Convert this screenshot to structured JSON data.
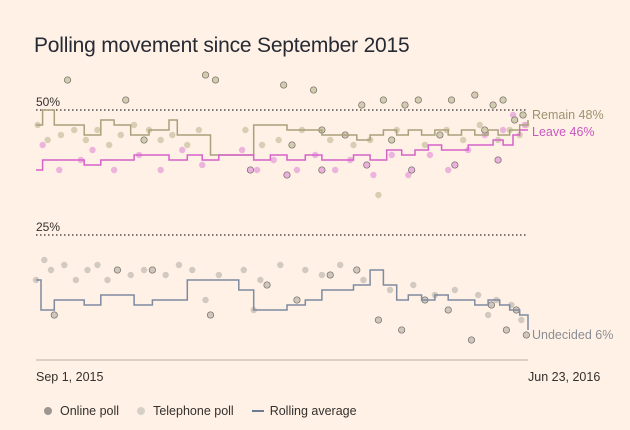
{
  "chart_data": {
    "type": "scatter",
    "title": "Polling movement since September 2015",
    "xlabel": "",
    "ylabel": "",
    "x_range": [
      "2015-09-01",
      "2016-06-23"
    ],
    "x_tick_labels": [
      "Sep 1, 2015",
      "Jun 23, 2016"
    ],
    "ylim": [
      0,
      60
    ],
    "reference_lines": [
      {
        "value": 50,
        "label": "50%"
      },
      {
        "value": 25,
        "label": "25%"
      }
    ],
    "grid": false,
    "legend_position": "bottom",
    "legend": [
      {
        "label": "Online poll",
        "marker": "dot",
        "color": "#9b9690"
      },
      {
        "label": "Telephone poll",
        "marker": "dot",
        "color": "#d7d0c8"
      },
      {
        "label": "Rolling average",
        "marker": "line",
        "color": "#6b7b91"
      }
    ],
    "colors": {
      "remain": "#aaa17c",
      "remain_label": "#9b9470",
      "leave": "#d662c9",
      "leave_label": "#c857bf",
      "undecided": "#7e8ba0",
      "undecided_label": "#8a8e95",
      "poll_remain": "#cdc6a6",
      "poll_leave": "#e7a4da",
      "poll_undecided": "#c7bfb6",
      "poll_online_outline": "#6e6a66"
    },
    "series": [
      {
        "name": "Remain",
        "end_label": "Remain 48%",
        "rolling_average": [
          [
            "2015-09-01",
            47
          ],
          [
            "2015-09-05",
            50
          ],
          [
            "2015-09-12",
            47
          ],
          [
            "2015-09-20",
            47
          ],
          [
            "2015-09-30",
            45
          ],
          [
            "2015-10-10",
            48
          ],
          [
            "2015-10-18",
            47
          ],
          [
            "2015-10-28",
            45
          ],
          [
            "2015-11-08",
            46
          ],
          [
            "2015-11-20",
            48
          ],
          [
            "2015-11-25",
            45
          ],
          [
            "2015-12-05",
            45
          ],
          [
            "2015-12-15",
            41
          ],
          [
            "2015-12-25",
            41
          ],
          [
            "2016-01-05",
            41
          ],
          [
            "2016-01-10",
            47
          ],
          [
            "2016-01-20",
            47
          ],
          [
            "2016-01-30",
            46
          ],
          [
            "2016-02-10",
            46
          ],
          [
            "2016-02-20",
            45
          ],
          [
            "2016-03-05",
            45
          ],
          [
            "2016-03-12",
            44
          ],
          [
            "2016-03-20",
            45
          ],
          [
            "2016-03-28",
            46
          ],
          [
            "2016-04-05",
            45
          ],
          [
            "2016-04-12",
            46
          ],
          [
            "2016-04-20",
            45
          ],
          [
            "2016-04-28",
            46
          ],
          [
            "2016-05-06",
            45
          ],
          [
            "2016-05-14",
            46
          ],
          [
            "2016-05-22",
            45
          ],
          [
            "2016-05-30",
            46
          ],
          [
            "2016-06-05",
            45
          ],
          [
            "2016-06-12",
            46
          ],
          [
            "2016-06-18",
            47
          ],
          [
            "2016-06-23",
            48
          ]
        ]
      },
      {
        "name": "Leave",
        "end_label": "Leave 46%",
        "rolling_average": [
          [
            "2015-09-01",
            38
          ],
          [
            "2015-09-05",
            40
          ],
          [
            "2015-09-15",
            40
          ],
          [
            "2015-09-30",
            39
          ],
          [
            "2015-10-10",
            40
          ],
          [
            "2015-10-20",
            40
          ],
          [
            "2015-10-30",
            41
          ],
          [
            "2015-11-10",
            41
          ],
          [
            "2015-11-20",
            40
          ],
          [
            "2015-12-01",
            41
          ],
          [
            "2015-12-10",
            40
          ],
          [
            "2015-12-20",
            41
          ],
          [
            "2016-01-01",
            41
          ],
          [
            "2016-01-10",
            40
          ],
          [
            "2016-01-20",
            41
          ],
          [
            "2016-01-30",
            40
          ],
          [
            "2016-02-10",
            41
          ],
          [
            "2016-02-20",
            40
          ],
          [
            "2016-03-01",
            40
          ],
          [
            "2016-03-10",
            41
          ],
          [
            "2016-03-20",
            40
          ],
          [
            "2016-03-30",
            42
          ],
          [
            "2016-04-08",
            41
          ],
          [
            "2016-04-16",
            42
          ],
          [
            "2016-04-24",
            43
          ],
          [
            "2016-05-02",
            42
          ],
          [
            "2016-05-10",
            42
          ],
          [
            "2016-05-18",
            43
          ],
          [
            "2016-05-26",
            43
          ],
          [
            "2016-06-02",
            44
          ],
          [
            "2016-06-08",
            43
          ],
          [
            "2016-06-14",
            45
          ],
          [
            "2016-06-18",
            46
          ],
          [
            "2016-06-23",
            46
          ]
        ]
      },
      {
        "name": "Undecided",
        "end_label": "Undecided 6%",
        "rolling_average": [
          [
            "2015-09-01",
            16
          ],
          [
            "2015-09-04",
            10
          ],
          [
            "2015-09-12",
            12
          ],
          [
            "2015-09-20",
            12
          ],
          [
            "2015-09-30",
            11
          ],
          [
            "2015-10-10",
            13
          ],
          [
            "2015-10-20",
            13
          ],
          [
            "2015-10-30",
            11
          ],
          [
            "2015-11-10",
            12
          ],
          [
            "2015-11-20",
            12
          ],
          [
            "2015-12-01",
            16
          ],
          [
            "2015-12-10",
            16
          ],
          [
            "2015-12-20",
            16
          ],
          [
            "2016-01-01",
            14
          ],
          [
            "2016-01-10",
            10
          ],
          [
            "2016-01-20",
            10
          ],
          [
            "2016-01-30",
            11
          ],
          [
            "2016-02-10",
            12
          ],
          [
            "2016-02-20",
            14
          ],
          [
            "2016-03-01",
            14
          ],
          [
            "2016-03-10",
            15
          ],
          [
            "2016-03-20",
            18
          ],
          [
            "2016-03-28",
            15
          ],
          [
            "2016-04-05",
            12
          ],
          [
            "2016-04-12",
            13
          ],
          [
            "2016-04-20",
            12
          ],
          [
            "2016-04-28",
            13
          ],
          [
            "2016-05-06",
            12
          ],
          [
            "2016-05-14",
            12
          ],
          [
            "2016-05-22",
            11
          ],
          [
            "2016-05-30",
            12
          ],
          [
            "2016-06-06",
            11
          ],
          [
            "2016-06-12",
            10
          ],
          [
            "2016-06-18",
            9
          ],
          [
            "2016-06-23",
            6
          ]
        ]
      }
    ],
    "polls": {
      "remain_online": [
        [
          "2015-09-20",
          56
        ],
        [
          "2015-10-25",
          52
        ],
        [
          "2015-12-12",
          57
        ],
        [
          "2015-12-18",
          56
        ],
        [
          "2016-01-28",
          55
        ],
        [
          "2016-02-15",
          54
        ],
        [
          "2016-03-15",
          51
        ],
        [
          "2016-03-28",
          52
        ],
        [
          "2016-04-10",
          51
        ],
        [
          "2016-04-18",
          52
        ],
        [
          "2016-05-08",
          52
        ],
        [
          "2016-05-22",
          53
        ],
        [
          "2016-06-02",
          51
        ],
        [
          "2016-06-08",
          52
        ],
        [
          "2016-06-15",
          48
        ],
        [
          "2016-06-20",
          49
        ],
        [
          "2015-11-05",
          44
        ],
        [
          "2016-02-02",
          43
        ],
        [
          "2016-02-20",
          46
        ],
        [
          "2016-03-05",
          45
        ],
        [
          "2016-04-02",
          44
        ],
        [
          "2016-05-01",
          45
        ],
        [
          "2016-05-28",
          46
        ]
      ],
      "remain_phone": [
        [
          "2015-09-02",
          47
        ],
        [
          "2015-09-08",
          44
        ],
        [
          "2015-09-16",
          45
        ],
        [
          "2015-09-24",
          46
        ],
        [
          "2015-10-01",
          44
        ],
        [
          "2015-10-08",
          46
        ],
        [
          "2015-10-15",
          43
        ],
        [
          "2015-10-22",
          45
        ],
        [
          "2015-10-30",
          47
        ],
        [
          "2015-11-08",
          46
        ],
        [
          "2015-11-15",
          44
        ],
        [
          "2015-11-22",
          45
        ],
        [
          "2015-12-01",
          43
        ],
        [
          "2015-12-08",
          46
        ],
        [
          "2016-01-05",
          46
        ],
        [
          "2016-01-15",
          43
        ],
        [
          "2016-01-25",
          44
        ],
        [
          "2016-02-08",
          46
        ],
        [
          "2016-02-25",
          44
        ],
        [
          "2016-03-10",
          43
        ],
        [
          "2016-03-20",
          44
        ],
        [
          "2016-04-05",
          46
        ],
        [
          "2016-04-22",
          43
        ],
        [
          "2016-05-05",
          46
        ],
        [
          "2016-05-15",
          44
        ],
        [
          "2016-05-25",
          47
        ],
        [
          "2016-06-05",
          44
        ],
        [
          "2016-06-12",
          46
        ],
        [
          "2016-06-18",
          45
        ],
        [
          "2016-06-22",
          47
        ],
        [
          "2016-03-25",
          33
        ]
      ],
      "leave_online": [
        [
          "2016-01-08",
          38
        ],
        [
          "2016-01-30",
          37
        ],
        [
          "2016-02-20",
          38
        ],
        [
          "2016-03-18",
          39
        ],
        [
          "2016-04-14",
          38
        ],
        [
          "2016-05-10",
          39
        ],
        [
          "2016-06-05",
          40
        ]
      ],
      "leave_phone": [
        [
          "2015-09-05",
          43
        ],
        [
          "2015-09-15",
          38
        ],
        [
          "2015-09-28",
          40
        ],
        [
          "2015-10-05",
          42
        ],
        [
          "2015-10-18",
          38
        ],
        [
          "2015-11-02",
          41
        ],
        [
          "2015-11-15",
          38
        ],
        [
          "2015-11-28",
          42
        ],
        [
          "2015-12-10",
          39
        ],
        [
          "2016-01-03",
          42
        ],
        [
          "2016-01-12",
          38
        ],
        [
          "2016-01-22",
          40
        ],
        [
          "2016-02-05",
          38
        ],
        [
          "2016-02-16",
          41
        ],
        [
          "2016-02-28",
          38
        ],
        [
          "2016-03-08",
          40
        ],
        [
          "2016-03-22",
          37
        ],
        [
          "2016-04-02",
          41
        ],
        [
          "2016-04-12",
          37
        ],
        [
          "2016-04-25",
          41
        ],
        [
          "2016-05-06",
          38
        ],
        [
          "2016-05-18",
          42
        ],
        [
          "2016-05-28",
          45
        ],
        [
          "2016-06-08",
          46
        ],
        [
          "2016-06-14",
          49
        ],
        [
          "2016-06-21",
          47
        ]
      ],
      "undecided_online": [
        [
          "2015-09-12",
          9
        ],
        [
          "2015-10-20",
          18
        ],
        [
          "2015-11-10",
          18
        ],
        [
          "2015-12-15",
          9
        ],
        [
          "2016-01-18",
          15
        ],
        [
          "2016-02-05",
          12
        ],
        [
          "2016-02-25",
          17
        ],
        [
          "2016-03-12",
          18
        ],
        [
          "2016-03-25",
          8
        ],
        [
          "2016-04-08",
          6
        ],
        [
          "2016-04-22",
          12
        ],
        [
          "2016-05-06",
          10
        ],
        [
          "2016-05-20",
          4
        ],
        [
          "2016-06-01",
          11
        ],
        [
          "2016-06-10",
          6
        ],
        [
          "2016-06-16",
          10
        ],
        [
          "2016-06-22",
          5
        ]
      ],
      "undecided_phone": [
        [
          "2015-09-01",
          16
        ],
        [
          "2015-09-06",
          20
        ],
        [
          "2015-09-10",
          18
        ],
        [
          "2015-09-18",
          19
        ],
        [
          "2015-09-25",
          16
        ],
        [
          "2015-10-02",
          18
        ],
        [
          "2015-10-08",
          19
        ],
        [
          "2015-10-14",
          16
        ],
        [
          "2015-10-28",
          17
        ],
        [
          "2015-11-05",
          18
        ],
        [
          "2015-11-18",
          17
        ],
        [
          "2015-11-26",
          19
        ],
        [
          "2015-12-04",
          18
        ],
        [
          "2015-12-20",
          17
        ],
        [
          "2016-01-04",
          18
        ],
        [
          "2016-01-14",
          16
        ],
        [
          "2016-01-26",
          19
        ],
        [
          "2016-02-10",
          18
        ],
        [
          "2016-02-20",
          17
        ],
        [
          "2016-03-02",
          19
        ],
        [
          "2016-03-16",
          16
        ],
        [
          "2016-04-01",
          14
        ],
        [
          "2016-04-15",
          15
        ],
        [
          "2016-04-28",
          13
        ],
        [
          "2016-05-10",
          14
        ],
        [
          "2016-05-24",
          13
        ],
        [
          "2016-06-04",
          12
        ],
        [
          "2016-06-13",
          11
        ],
        [
          "2016-06-19",
          8
        ],
        [
          "2015-12-12",
          12
        ],
        [
          "2016-01-10",
          10
        ],
        [
          "2016-05-30",
          9
        ]
      ]
    }
  }
}
